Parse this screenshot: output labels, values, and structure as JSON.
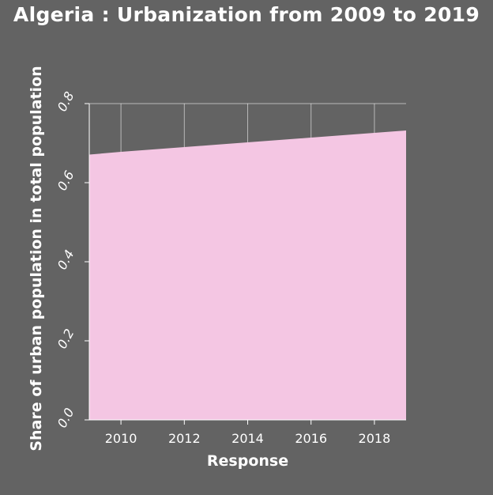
{
  "chart_data": {
    "type": "area",
    "title": "Algeria : Urbanization from 2009 to 2019",
    "xlabel": "Response",
    "ylabel": "Share of urban population in total population",
    "x": [
      2009,
      2010,
      2011,
      2012,
      2013,
      2014,
      2015,
      2016,
      2017,
      2018,
      2019
    ],
    "series": [
      {
        "values": [
          0.671,
          0.678,
          0.684,
          0.69,
          0.696,
          0.702,
          0.708,
          0.714,
          0.72,
          0.726,
          0.732
        ]
      }
    ],
    "xlim": [
      2009,
      2019
    ],
    "ylim": [
      0,
      0.8
    ],
    "xticks": [
      2010,
      2012,
      2014,
      2016,
      2018
    ],
    "xtick_labels": [
      "2010",
      "2012",
      "2014",
      "2016",
      "2018"
    ],
    "yticks": [
      0,
      0.2,
      0.4,
      0.6,
      0.8
    ],
    "ytick_labels": [
      "0.0",
      "0.2",
      "0.4",
      "0.6",
      "0.8"
    ],
    "grid": true,
    "colors": {
      "background": "#636363",
      "fill": "#f4c6e3",
      "grid": "#ffffff",
      "text": "#ffffff"
    }
  }
}
